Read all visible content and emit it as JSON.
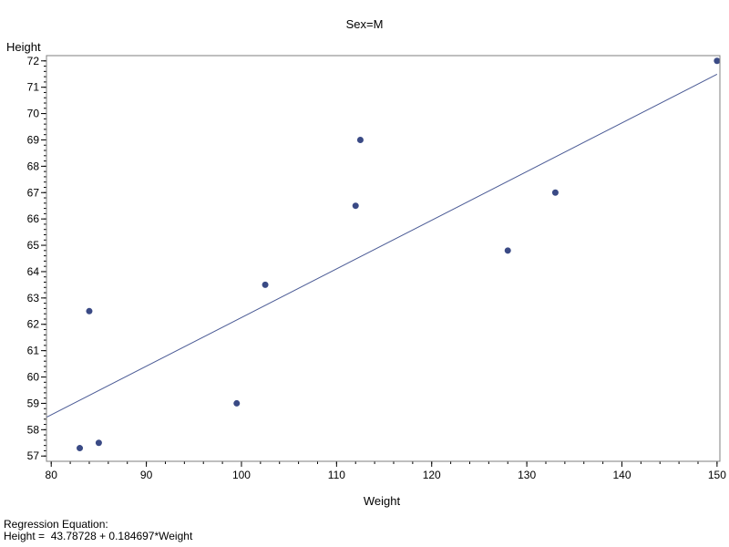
{
  "chart_data": {
    "type": "scatter",
    "title": "Sex=M",
    "xlabel": "Weight",
    "ylabel": "Height",
    "xlim": [
      79.5,
      150.3
    ],
    "ylim": [
      56.8,
      72.2
    ],
    "x_ticks": [
      80,
      90,
      100,
      110,
      120,
      130,
      140,
      150
    ],
    "y_ticks": [
      57,
      58,
      59,
      60,
      61,
      62,
      63,
      64,
      65,
      66,
      67,
      68,
      69,
      70,
      71,
      72
    ],
    "x_minor_step": 2,
    "y_minor_step": 0.2,
    "grid": false,
    "colors": {
      "points": "#3a4a85",
      "line": "#4a5a95",
      "frame": "#7f7f7f"
    },
    "series": [
      {
        "points": [
          {
            "x": 83,
            "y": 57.3
          },
          {
            "x": 84,
            "y": 62.5
          },
          {
            "x": 85,
            "y": 57.5
          },
          {
            "x": 99.5,
            "y": 59
          },
          {
            "x": 102.5,
            "y": 63.5
          },
          {
            "x": 112,
            "y": 66.5
          },
          {
            "x": 112.5,
            "y": 69
          },
          {
            "x": 128,
            "y": 64.8
          },
          {
            "x": 133,
            "y": 67
          },
          {
            "x": 150,
            "y": 72
          }
        ]
      }
    ],
    "regression": {
      "intercept": 43.78728,
      "slope": 0.184697,
      "x_from": 79.5,
      "x_to": 150
    },
    "footnote": {
      "line1": "Regression Equation:",
      "line2": "Height =  43.78728 + 0.184697*Weight"
    }
  }
}
